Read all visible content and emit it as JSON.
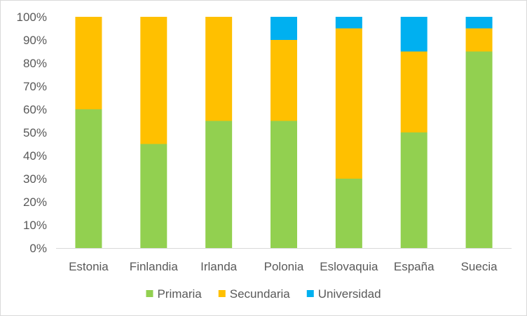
{
  "chart_data": {
    "type": "bar",
    "stacked": true,
    "percent": true,
    "categories": [
      "Estonia",
      "Finlandia",
      "Irlanda",
      "Polonia",
      "Eslovaquia",
      "España",
      "Suecia"
    ],
    "series": [
      {
        "name": "Primaria",
        "color": "#92d050",
        "values": [
          60,
          45,
          55,
          55,
          30,
          50,
          85
        ]
      },
      {
        "name": "Secundaria",
        "color": "#ffc000",
        "values": [
          40,
          55,
          45,
          35,
          65,
          35,
          10
        ]
      },
      {
        "name": "Universidad",
        "color": "#00b0f0",
        "values": [
          0,
          0,
          0,
          10,
          5,
          15,
          5
        ]
      }
    ],
    "y_ticks": [
      "0%",
      "10%",
      "20%",
      "30%",
      "40%",
      "50%",
      "60%",
      "70%",
      "80%",
      "90%",
      "100%"
    ],
    "ylim": [
      0,
      100
    ],
    "grid": false,
    "legend_position": "bottom"
  }
}
